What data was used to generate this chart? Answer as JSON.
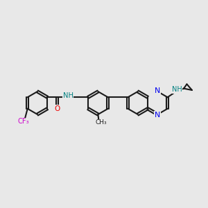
{
  "background_color": "#e8e8e8",
  "bond_color": "#1a1a1a",
  "nitrogen_color": "#0000ee",
  "oxygen_color": "#ee0000",
  "fluorine_color": "#cc00cc",
  "hydrogen_color": "#008080",
  "figsize": [
    3.0,
    3.0
  ],
  "dpi": 100,
  "xlim": [
    0,
    10
  ],
  "ylim": [
    2,
    8
  ]
}
